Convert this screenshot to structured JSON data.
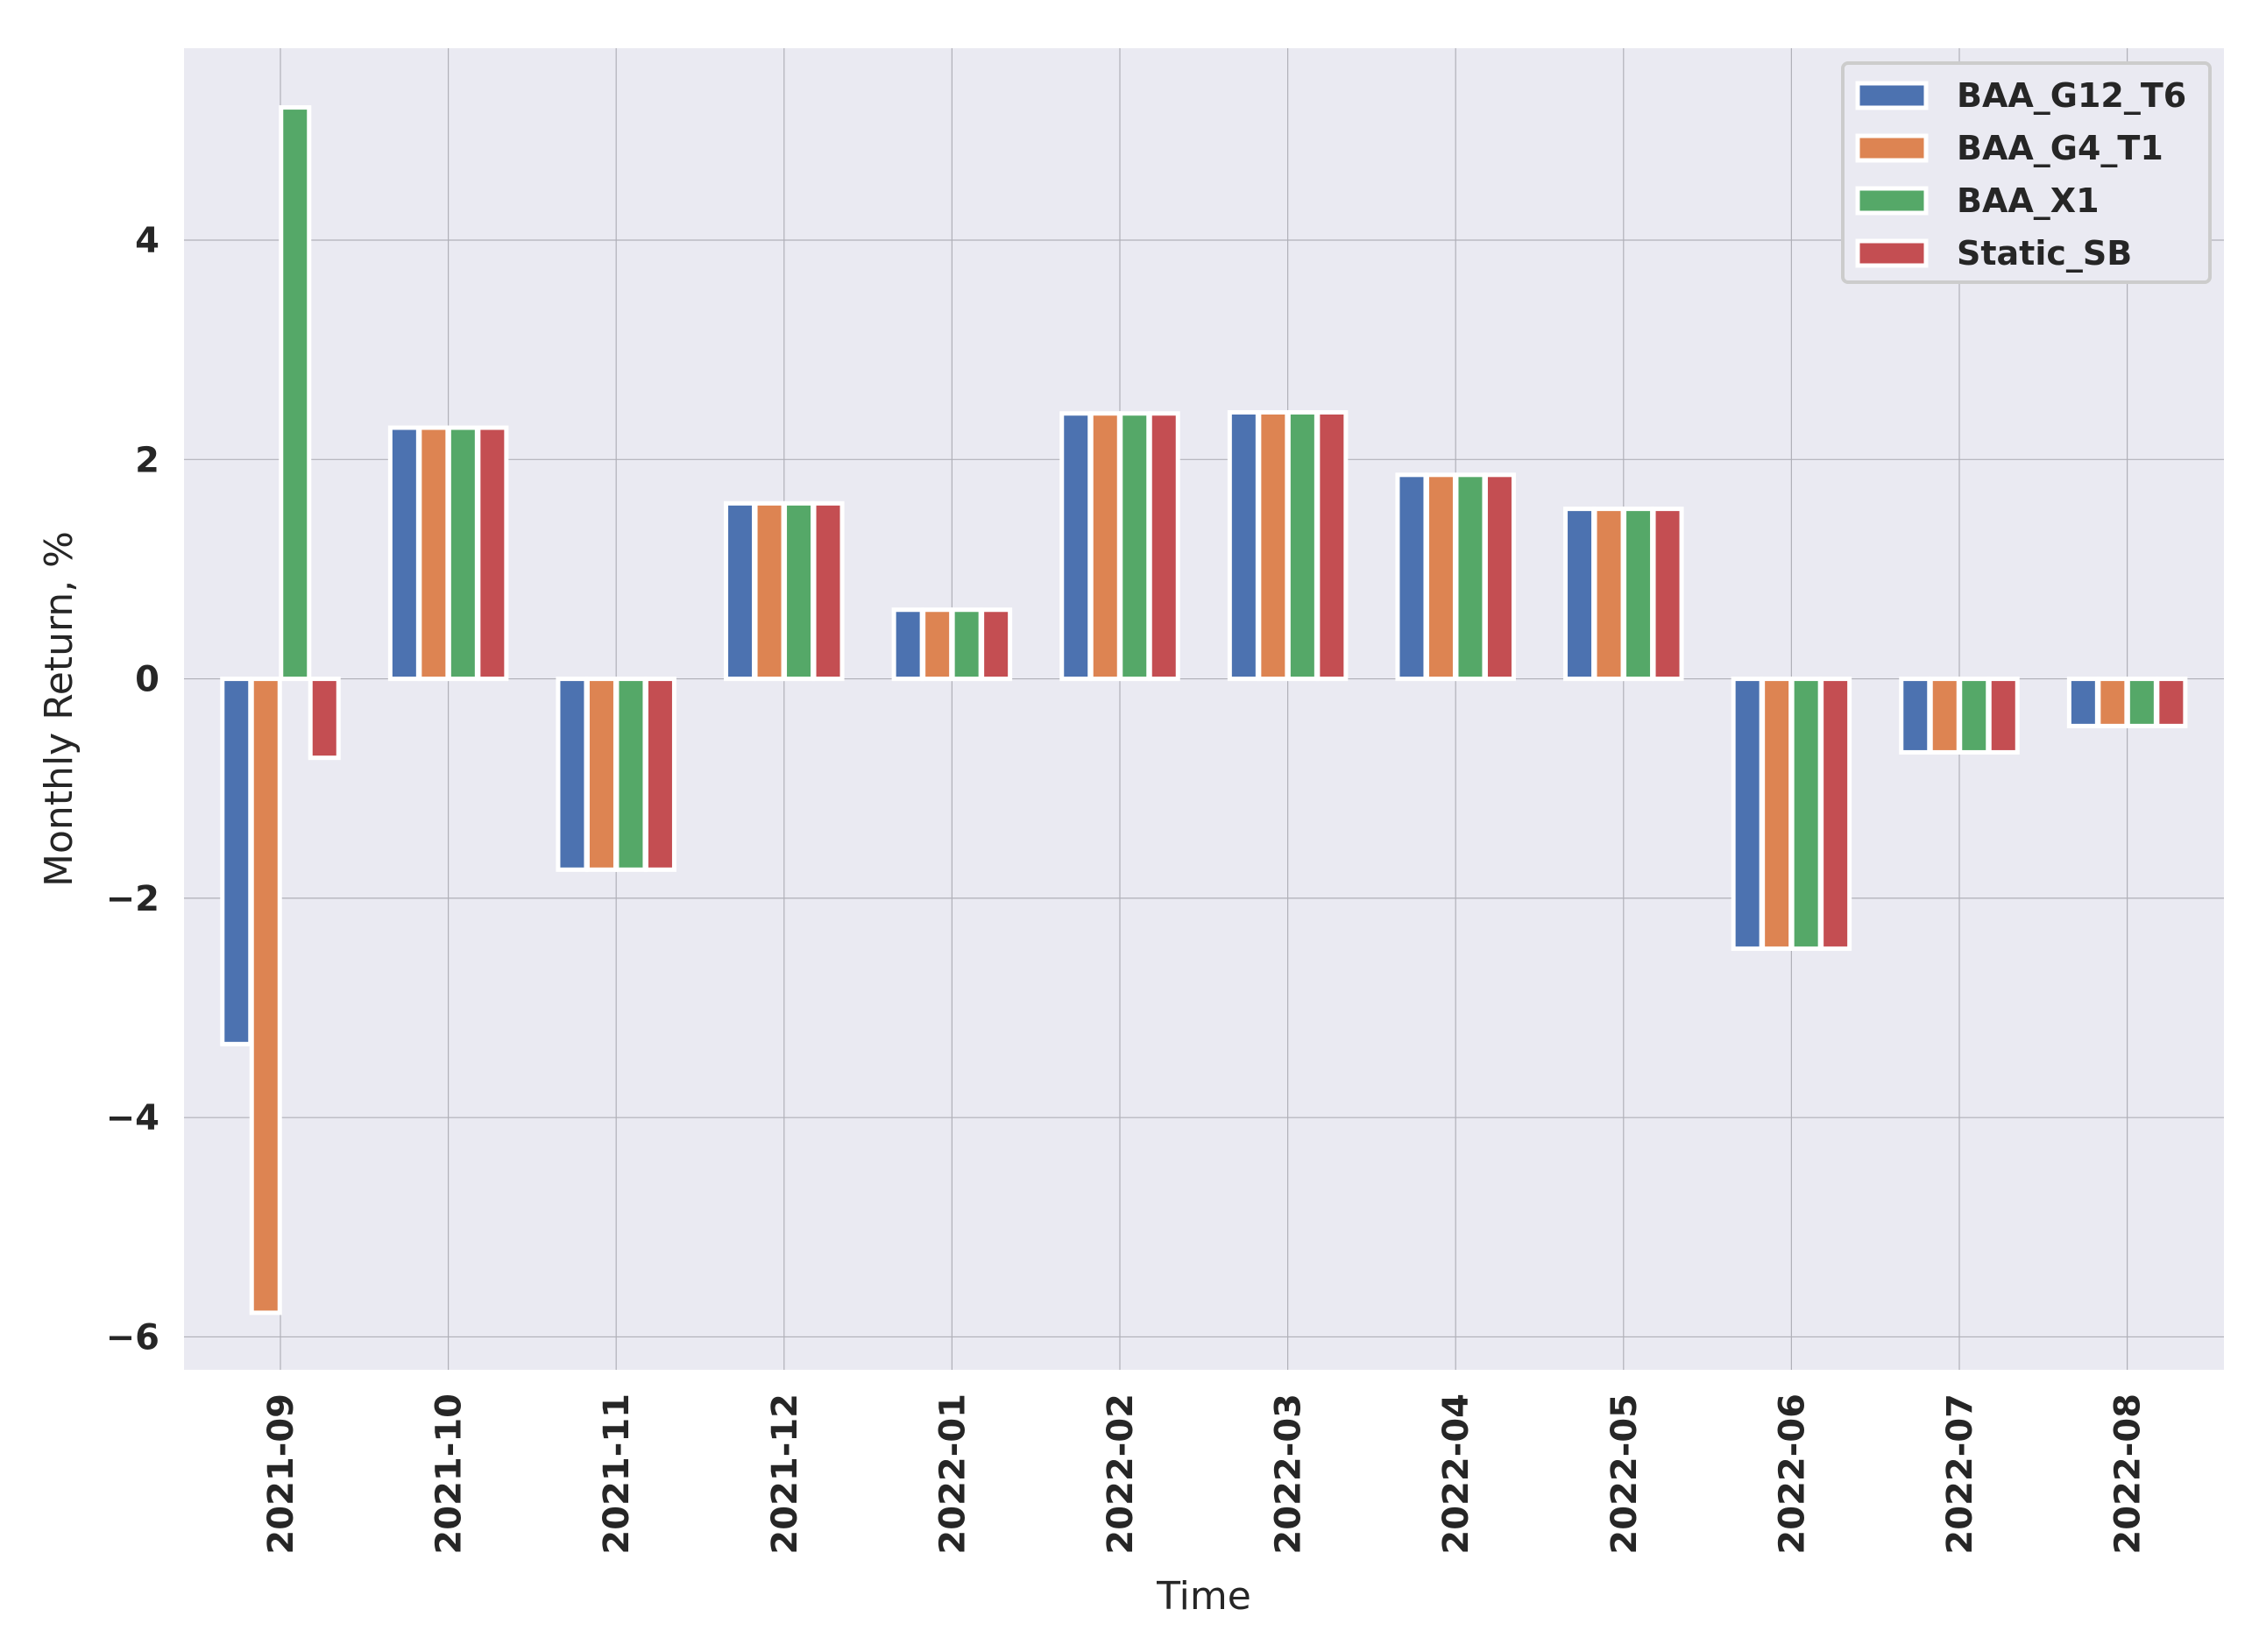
{
  "chart_data": {
    "type": "bar",
    "xlabel": "Time",
    "ylabel": "Monthly Return, %",
    "ylim": [
      -6.3,
      5.75
    ],
    "yticks": [
      -6,
      -4,
      -2,
      0,
      2,
      4
    ],
    "ytick_labels": [
      "−6",
      "−4",
      "−2",
      "0",
      "2",
      "4"
    ],
    "grid": true,
    "legend_position": "top-right",
    "categories": [
      "2021-09",
      "2021-10",
      "2021-11",
      "2021-12",
      "2022-01",
      "2022-02",
      "2022-03",
      "2022-04",
      "2022-05",
      "2022-06",
      "2022-07",
      "2022-08"
    ],
    "series": [
      {
        "name": "BAA_G12_T6",
        "color": "#4c72b0",
        "values": [
          -3.33,
          2.29,
          -1.74,
          1.6,
          0.63,
          2.42,
          2.43,
          1.86,
          1.55,
          -2.46,
          -0.67,
          -0.43
        ]
      },
      {
        "name": "BAA_G4_T1",
        "color": "#dd8452",
        "values": [
          -5.78,
          2.29,
          -1.74,
          1.6,
          0.63,
          2.42,
          2.43,
          1.86,
          1.55,
          -2.46,
          -0.67,
          -0.43
        ]
      },
      {
        "name": "BAA_X1",
        "color": "#55a868",
        "values": [
          5.21,
          2.29,
          -1.74,
          1.6,
          0.63,
          2.42,
          2.43,
          1.86,
          1.55,
          -2.46,
          -0.67,
          -0.43
        ]
      },
      {
        "name": "Static_SB",
        "color": "#c44e52",
        "values": [
          -0.72,
          2.29,
          -1.74,
          1.6,
          0.63,
          2.42,
          2.43,
          1.86,
          1.55,
          -2.46,
          -0.67,
          -0.43
        ]
      }
    ]
  }
}
